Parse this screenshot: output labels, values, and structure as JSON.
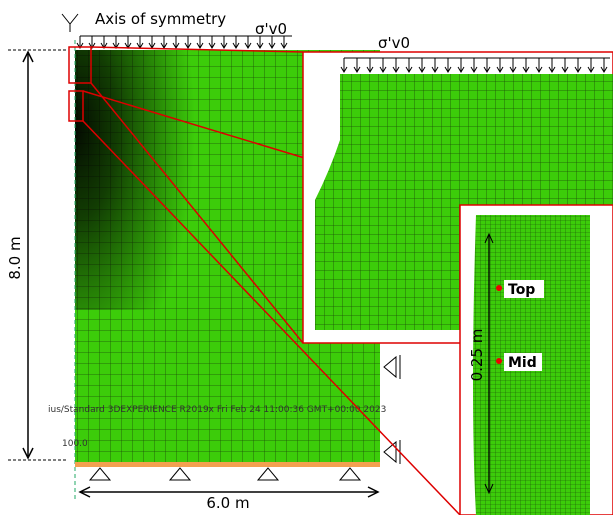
{
  "axis_label": "Axis of symmetry",
  "load_label_main": "σ'v0",
  "load_label_inset": "σ'v0",
  "height_label": "8.0 m",
  "width_label": "6.0 m",
  "inset_height_label": "0.25 m",
  "point_labels": [
    "Top",
    "Mid"
  ],
  "watermark": "ius/Standard 3DEXPERIENCE R2019x    Fri Feb 24 11:00:36 GMT+00:00 2023",
  "scale_label": "100.0"
}
